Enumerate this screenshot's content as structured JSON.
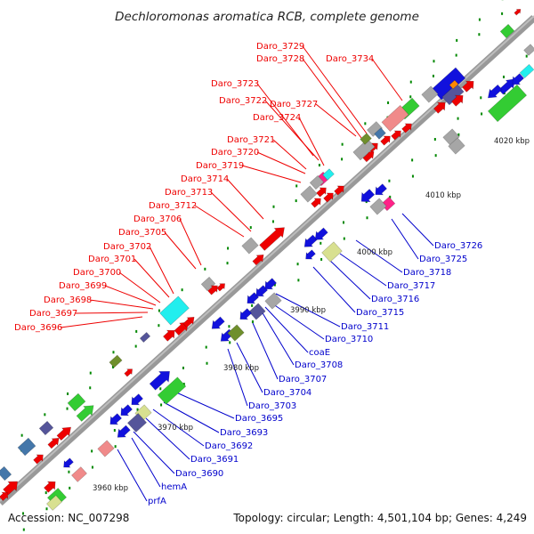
{
  "title": "Dechloromonas aromatica RCB, complete genome",
  "footer": {
    "accession": "Accession: NC_007298",
    "summary": "Topology: circular; Length: 4,501,104 bp; Genes: 4,249"
  },
  "colors": {
    "axis": "#999999",
    "label_upper": "#ee0000",
    "label_lower": "#0000cc",
    "tick": "#008800",
    "red_gene": "#ee0000",
    "blue_gene": "#1111dd",
    "green_gene": "#33cc33",
    "gray_gene": "#a6a6a6",
    "pink_gene": "#f08a8a",
    "navy_gene": "#55559a",
    "olive_gene": "#6f8f2c",
    "cyan_gene": "#22eeee",
    "magenta_gene": "#ff2288",
    "steel_gene": "#4477aa",
    "khaki_gene": "#d8e090",
    "orange_gene": "#ff8800"
  },
  "scale_labels": [
    "4020 kbp",
    "4010 kbp",
    "4000 kbp",
    "3990 kbp",
    "3980 kbp",
    "3970 kbp",
    "3960 kbp"
  ],
  "upper_labels": [
    "Daro_3729",
    "Daro_3728",
    "Daro_3734",
    "Daro_3723",
    "Daro_3722",
    "Daro_3727",
    "Daro_3724",
    "Daro_3721",
    "Daro_3720",
    "Daro_3719",
    "Daro_3714",
    "Daro_3713",
    "Daro_3712",
    "Daro_3706",
    "Daro_3705",
    "Daro_3702",
    "Daro_3701",
    "Daro_3700",
    "Daro_3699",
    "Daro_3698",
    "Daro_3697",
    "Daro_3696"
  ],
  "lower_labels": [
    "Daro_3726",
    "Daro_3725",
    "Daro_3718",
    "Daro_3717",
    "Daro_3716",
    "Daro_3715",
    "Daro_3711",
    "Daro_3710",
    "coaE",
    "Daro_3708",
    "Daro_3707",
    "Daro_3704",
    "Daro_3703",
    "Daro_3695",
    "Daro_3693",
    "Daro_3692",
    "Daro_3691",
    "Daro_3690",
    "hemA",
    "prfA"
  ]
}
